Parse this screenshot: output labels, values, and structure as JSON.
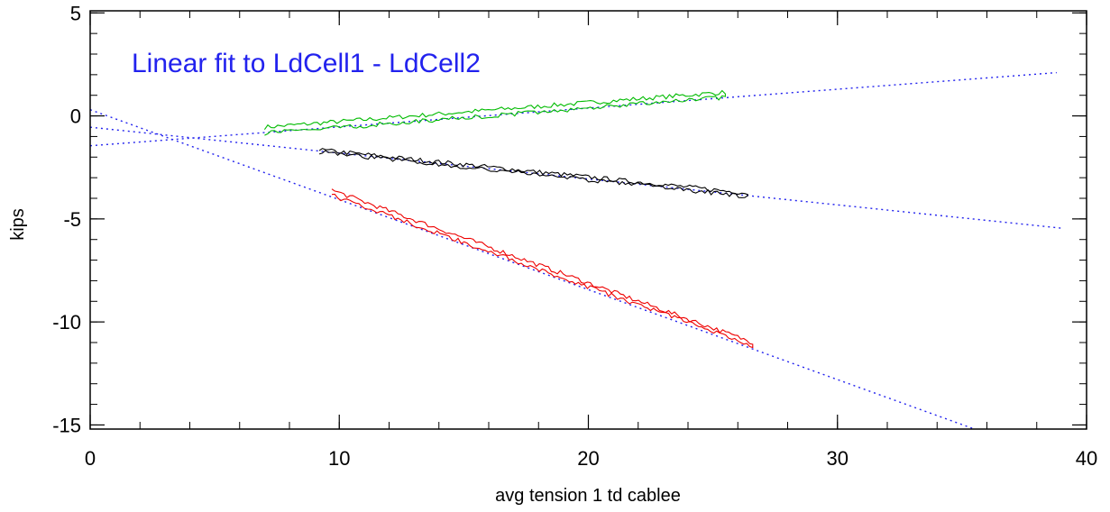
{
  "chart_data": {
    "type": "line",
    "title": "",
    "xlabel": "avg tension 1 td cablee",
    "ylabel": "kips",
    "xlim": [
      0,
      40
    ],
    "ylim": [
      -15.2,
      5.1
    ],
    "x_ticks": [
      0,
      10,
      20,
      30,
      40
    ],
    "y_ticks": [
      5,
      0,
      -5,
      -10,
      -15
    ],
    "x_tick_labels": [
      "0",
      "10",
      "20",
      "30",
      "40"
    ],
    "y_tick_labels": [
      "5",
      "0",
      "-5",
      "-10",
      "-15"
    ],
    "x_minor_step": 2,
    "y_minor_step": 1,
    "grid": false,
    "annotation": {
      "text": "Linear fit to LdCell1 - LdCell2",
      "color": "#2222ee"
    },
    "series": [
      {
        "color": "#00bb00",
        "style": "loop",
        "x_range": [
          7.0,
          25.5
        ],
        "y_top_start": -0.55,
        "y_top_end": 1.15,
        "y_bottom_start": -0.85,
        "y_bottom_end": 0.9
      },
      {
        "color": "#000000",
        "style": "loop",
        "x_range": [
          9.2,
          26.4
        ],
        "y_top_start": -1.65,
        "y_top_end": -3.75,
        "y_bottom_start": -1.75,
        "y_bottom_end": -3.9
      },
      {
        "color": "#ee0000",
        "style": "loop",
        "x_range": [
          9.7,
          26.6
        ],
        "y_top_start": -3.6,
        "y_top_end": -11.0,
        "y_bottom_start": -3.85,
        "y_bottom_end": -11.15
      }
    ],
    "fit_lines": [
      {
        "color": "#2222ee",
        "x": [
          0,
          38.8
        ],
        "y": [
          -1.45,
          2.1
        ]
      },
      {
        "color": "#2222ee",
        "x": [
          0,
          39.0
        ],
        "y": [
          -0.55,
          -5.45
        ]
      },
      {
        "color": "#2222ee",
        "x": [
          0,
          35.5
        ],
        "y": [
          0.3,
          -15.2
        ]
      }
    ]
  }
}
